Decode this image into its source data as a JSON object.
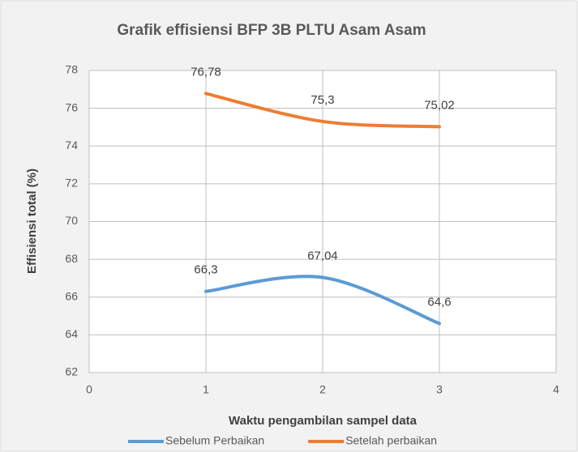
{
  "chart_data": {
    "type": "line",
    "title": "Grafik effisiensi BFP 3B PLTU Asam Asam",
    "x_label": "Waktu pengambilan sampel data",
    "y_label": "Effisiensi total (%)",
    "x": [
      1,
      2,
      3
    ],
    "series": [
      {
        "name": "Sebelum Perbaikan",
        "color": "#5b9bd5",
        "values": [
          66.3,
          67.04,
          64.6
        ],
        "value_labels": [
          "66,3",
          "67,04",
          "64,6"
        ]
      },
      {
        "name": "Setelah perbaikan",
        "color": "#ed7d31",
        "values": [
          76.78,
          75.3,
          75.02
        ],
        "value_labels": [
          "76,78",
          "75,3",
          "75,02"
        ]
      }
    ],
    "xlim": [
      0,
      4
    ],
    "xticks": [
      0,
      1,
      2,
      3,
      4
    ],
    "ylim": [
      62,
      78
    ],
    "yticks": [
      62,
      64,
      66,
      68,
      70,
      72,
      74,
      76,
      78
    ],
    "grid": true,
    "smooth": true,
    "legend": "bottom"
  }
}
